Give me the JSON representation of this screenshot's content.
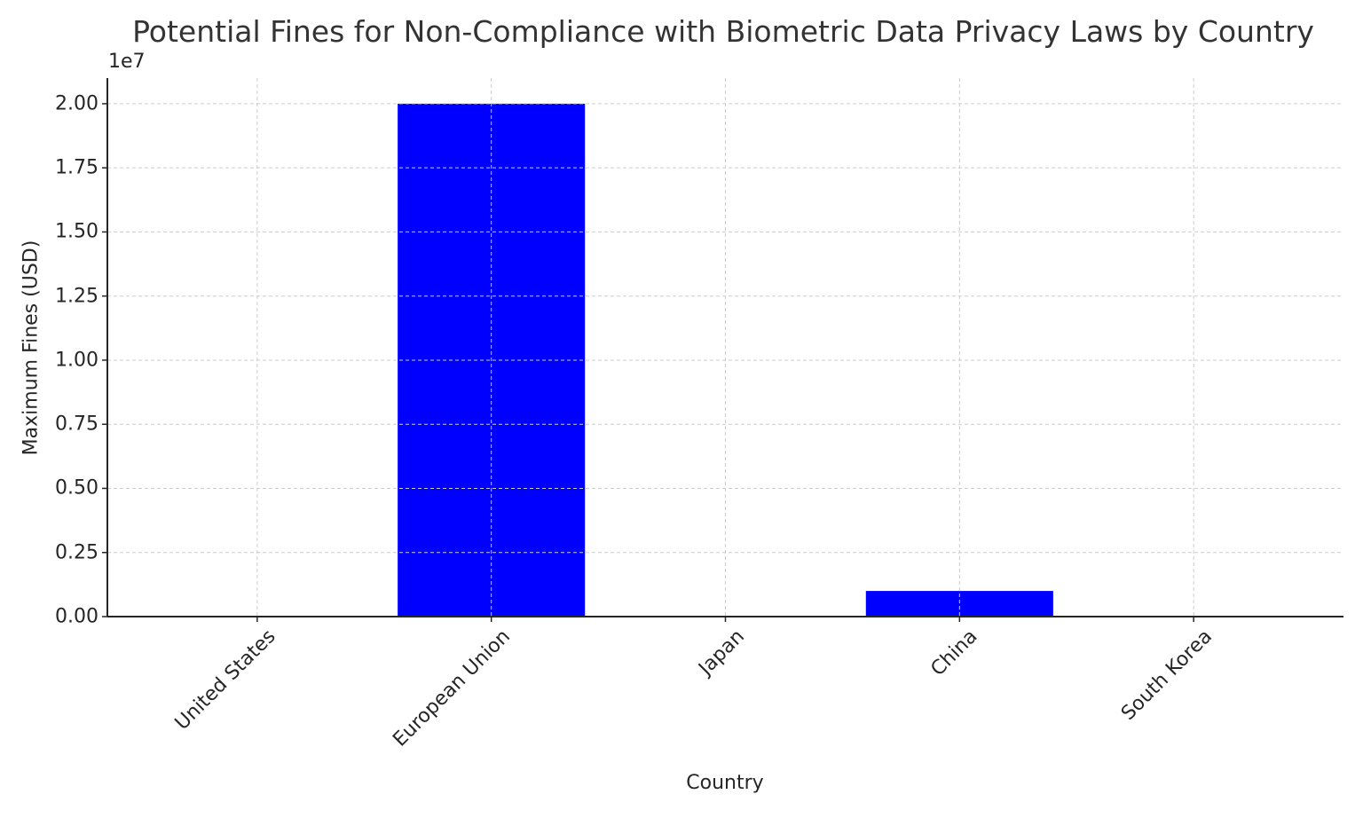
{
  "chart_data": {
    "type": "bar",
    "title": "Potential Fines for Non-Compliance with Biometric Data Privacy Laws by Country",
    "xlabel": "Country",
    "ylabel": "Maximum Fines (USD)",
    "y_offset_label": "1e7",
    "categories": [
      "United States",
      "European Union",
      "Japan",
      "China",
      "South Korea"
    ],
    "values": [
      0,
      20000000,
      0,
      1000000,
      0
    ],
    "ylim": [
      0,
      21000000
    ],
    "yticks": [
      0,
      2500000,
      5000000,
      7500000,
      10000000,
      12500000,
      15000000,
      17500000,
      20000000
    ],
    "ytick_labels": [
      "0.00",
      "0.25",
      "0.50",
      "0.75",
      "1.00",
      "1.25",
      "1.50",
      "1.75",
      "2.00"
    ],
    "grid": true,
    "grid_style": "dashed",
    "bar_color": "#0000ff",
    "xtick_rotation": 45,
    "legend": null
  }
}
